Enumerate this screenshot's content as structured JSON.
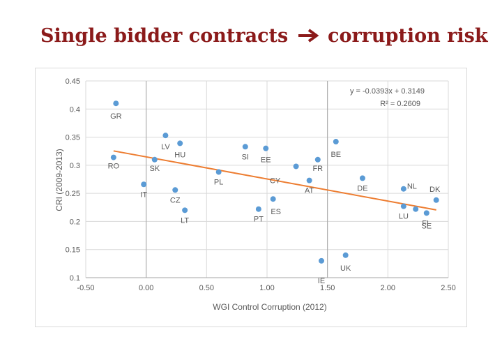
{
  "slide": {
    "title": "Single bidder contracts",
    "arrow_icon": "right-arrow-icon",
    "title_suffix": "corruption risk",
    "title_color": "#8b1a1a"
  },
  "chart_data": {
    "type": "scatter",
    "title": "",
    "xlabel": "WGI Control Corruption (2012)",
    "ylabel": "CRI (2009-2013)",
    "xlim": [
      -0.5,
      2.5
    ],
    "ylim": [
      0.1,
      0.45
    ],
    "xticks": [
      "-0.50",
      "0.00",
      "0.50",
      "1.00",
      "1.50",
      "2.00",
      "2.50"
    ],
    "yticks": [
      "0.1",
      "0.15",
      "0.2",
      "0.25",
      "0.3",
      "0.35",
      "0.4",
      "0.45"
    ],
    "grid": true,
    "marker_color": "#5b9bd5",
    "trend_color": "#ed7d31",
    "trendline": {
      "slope": -0.0393,
      "intercept": 0.3149,
      "x_range": [
        -0.27,
        2.4
      ]
    },
    "equation": "y = -0.0393x + 0.3149",
    "r_squared": "R² = 0.2609",
    "points": [
      {
        "label": "GR",
        "x": -0.25,
        "y": 0.41
      },
      {
        "label": "RO",
        "x": -0.27,
        "y": 0.314
      },
      {
        "label": "IT",
        "x": -0.02,
        "y": 0.266
      },
      {
        "label": "SK",
        "x": 0.07,
        "y": 0.31
      },
      {
        "label": "LV",
        "x": 0.16,
        "y": 0.353
      },
      {
        "label": "HU",
        "x": 0.28,
        "y": 0.339
      },
      {
        "label": "CZ",
        "x": 0.24,
        "y": 0.256
      },
      {
        "label": "LT",
        "x": 0.32,
        "y": 0.22
      },
      {
        "label": "PL",
        "x": 0.6,
        "y": 0.288
      },
      {
        "label": "SI",
        "x": 0.82,
        "y": 0.333
      },
      {
        "label": "EE",
        "x": 0.99,
        "y": 0.33
      },
      {
        "label": "PT",
        "x": 0.93,
        "y": 0.222
      },
      {
        "label": "ES",
        "x": 1.05,
        "y": 0.24
      },
      {
        "label": "CY",
        "x": 1.24,
        "y": 0.298
      },
      {
        "label": "FR",
        "x": 1.42,
        "y": 0.31
      },
      {
        "label": "AT",
        "x": 1.35,
        "y": 0.273
      },
      {
        "label": "BE",
        "x": 1.57,
        "y": 0.342
      },
      {
        "label": "IE",
        "x": 1.45,
        "y": 0.13
      },
      {
        "label": "UK",
        "x": 1.65,
        "y": 0.14
      },
      {
        "label": "DE",
        "x": 1.79,
        "y": 0.277
      },
      {
        "label": "NL",
        "x": 2.13,
        "y": 0.258
      },
      {
        "label": "LU",
        "x": 2.13,
        "y": 0.227
      },
      {
        "label": "FI",
        "x": 2.23,
        "y": 0.222
      },
      {
        "label": "SE",
        "x": 2.32,
        "y": 0.215
      },
      {
        "label": "DK",
        "x": 2.4,
        "y": 0.238
      }
    ]
  }
}
